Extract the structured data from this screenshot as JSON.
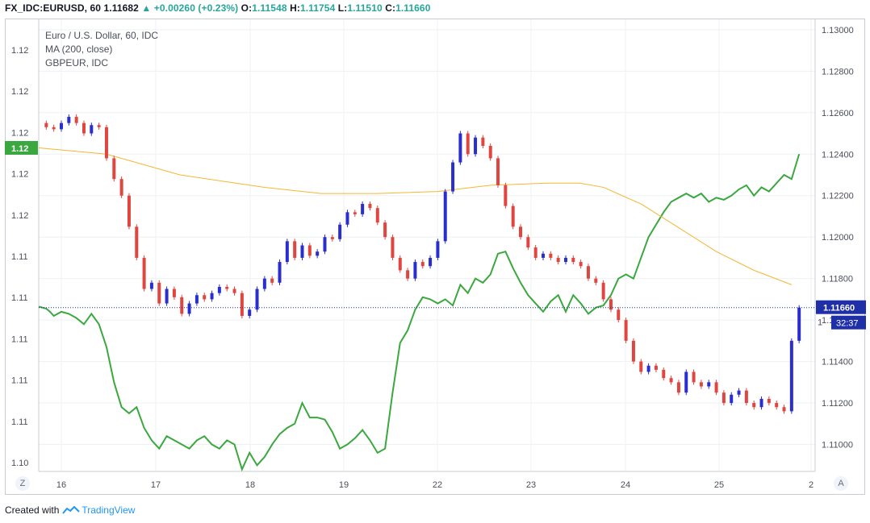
{
  "header": {
    "symbol": "FX_IDC:EURUSD, 60",
    "last": "1.11682",
    "change": "+0.00260 (+0.23%)",
    "open_label": "O:",
    "open": "1.11548",
    "high_label": "H:",
    "high": "1.11754",
    "low_label": "L:",
    "low": "1.11510",
    "close_label": "C:",
    "close": "1.11660"
  },
  "legend": {
    "line1": "Euro / U.S. Dollar, 60, IDC",
    "line2": "MA (200, close)",
    "line3": "GBPEUR, IDC"
  },
  "footer": {
    "created_with": "Created with",
    "brand": "TradingView"
  },
  "buttons": {
    "left": "Z",
    "right": "A"
  },
  "colors": {
    "up": "#2b2ecf",
    "down": "#e0453f",
    "ma": "#f5b731",
    "compare": "#3ba83f",
    "price_line": "#1e2fa8",
    "left_badge": "#3ba83f",
    "grid": "#eef0f3"
  },
  "chart_data": {
    "type": "line",
    "x_labels": [
      "16",
      "17",
      "18",
      "19",
      "22",
      "23",
      "24",
      "25",
      "2"
    ],
    "right_axis": {
      "ticks": [
        "1.13000",
        "1.12800",
        "1.12600",
        "1.12400",
        "1.12200",
        "1.12000",
        "1.11800",
        "1.11600",
        "1.11400",
        "1.11200",
        "1.11000"
      ],
      "ylim": [
        1.1087,
        1.1305
      ],
      "current_price_label": "1.11660",
      "countdown_label": "32:37",
      "partial_label": "1"
    },
    "left_axis": {
      "ticks": [
        "1.12",
        "1.12",
        "1.12",
        "1.12",
        "1.12",
        "1.11",
        "1.11",
        "1.11",
        "1.11",
        "1.11",
        "1.10"
      ],
      "current_label": "1.12"
    },
    "series": [
      {
        "name": "Euro / U.S. Dollar, 60, IDC",
        "kind": "candles",
        "points": [
          [
            0,
            1.1255
          ],
          [
            1.6,
            1.1253
          ],
          [
            3.2,
            1.1252
          ],
          [
            4.8,
            1.1255
          ],
          [
            6.4,
            1.1258
          ],
          [
            8,
            1.1255
          ],
          [
            9.6,
            1.125
          ],
          [
            11.2,
            1.1254
          ],
          [
            12.8,
            1.1253
          ],
          [
            14.4,
            1.1238
          ],
          [
            16,
            1.1228
          ],
          [
            17.6,
            1.122
          ],
          [
            19.2,
            1.1205
          ],
          [
            20.8,
            1.119
          ],
          [
            22.4,
            1.1175
          ],
          [
            24,
            1.1178
          ],
          [
            25.6,
            1.1168
          ],
          [
            27.2,
            1.1175
          ],
          [
            28.8,
            1.1171
          ],
          [
            30.4,
            1.1163
          ],
          [
            32,
            1.1168
          ],
          [
            33.6,
            1.1172
          ],
          [
            35.2,
            1.117
          ],
          [
            36.8,
            1.1173
          ],
          [
            38.4,
            1.1176
          ],
          [
            40,
            1.1175
          ],
          [
            41.6,
            1.1173
          ],
          [
            43.2,
            1.1162
          ],
          [
            44.8,
            1.1165
          ],
          [
            46.4,
            1.1175
          ],
          [
            48,
            1.118
          ],
          [
            49.6,
            1.1178
          ],
          [
            51.2,
            1.1188
          ],
          [
            52.8,
            1.1198
          ],
          [
            54.4,
            1.119
          ],
          [
            56,
            1.1196
          ],
          [
            57.6,
            1.1191
          ],
          [
            59.2,
            1.1193
          ],
          [
            60.8,
            1.12
          ],
          [
            62.4,
            1.1199
          ],
          [
            64,
            1.1206
          ],
          [
            65.6,
            1.1212
          ],
          [
            67.2,
            1.1211
          ],
          [
            68.8,
            1.1216
          ],
          [
            70.4,
            1.1214
          ],
          [
            72,
            1.1207
          ],
          [
            73.6,
            1.12
          ],
          [
            75.2,
            1.119
          ],
          [
            76.8,
            1.1184
          ],
          [
            78.4,
            1.118
          ],
          [
            80,
            1.1188
          ],
          [
            81.6,
            1.1186
          ],
          [
            83.2,
            1.119
          ],
          [
            84.8,
            1.1198
          ],
          [
            86.4,
            1.1222
          ],
          [
            88,
            1.1236
          ],
          [
            89.6,
            1.125
          ],
          [
            91.2,
            1.124
          ],
          [
            92.8,
            1.1248
          ],
          [
            94.4,
            1.1244
          ],
          [
            96,
            1.1238
          ],
          [
            97.6,
            1.1225
          ],
          [
            99.2,
            1.1215
          ],
          [
            100.8,
            1.1205
          ],
          [
            102.4,
            1.12
          ],
          [
            104,
            1.1195
          ],
          [
            105.6,
            1.119
          ],
          [
            107.2,
            1.1192
          ],
          [
            108.8,
            1.119
          ],
          [
            110.4,
            1.1188
          ],
          [
            112,
            1.119
          ],
          [
            113.6,
            1.1188
          ],
          [
            115.2,
            1.1186
          ],
          [
            116.8,
            1.118
          ],
          [
            118.4,
            1.1178
          ],
          [
            120,
            1.117
          ],
          [
            121.6,
            1.1165
          ],
          [
            123.2,
            1.116
          ],
          [
            124.8,
            1.115
          ],
          [
            126.4,
            1.114
          ],
          [
            128,
            1.1135
          ],
          [
            129.6,
            1.1138
          ],
          [
            131.2,
            1.1136
          ],
          [
            132.8,
            1.1132
          ],
          [
            134.4,
            1.113
          ],
          [
            136,
            1.1125
          ],
          [
            137.6,
            1.1135
          ],
          [
            139.2,
            1.113
          ],
          [
            140.8,
            1.1128
          ],
          [
            142.4,
            1.113
          ],
          [
            144,
            1.1125
          ],
          [
            145.6,
            1.112
          ],
          [
            147.2,
            1.1124
          ],
          [
            148.8,
            1.1126
          ],
          [
            150.4,
            1.112
          ],
          [
            152,
            1.1118
          ],
          [
            153.6,
            1.1122
          ],
          [
            155.2,
            1.112
          ],
          [
            156.8,
            1.1118
          ],
          [
            158.4,
            1.1116
          ],
          [
            160,
            1.115
          ],
          [
            161.6,
            1.1166
          ]
        ]
      },
      {
        "name": "MA (200, close)",
        "kind": "line",
        "points": [
          [
            0,
            1.1243
          ],
          [
            14.4,
            1.124
          ],
          [
            30,
            1.123
          ],
          [
            48,
            1.1224
          ],
          [
            60,
            1.1221
          ],
          [
            72,
            1.1221
          ],
          [
            84.8,
            1.1222
          ],
          [
            96,
            1.1225
          ],
          [
            108,
            1.1226
          ],
          [
            115,
            1.1226
          ],
          [
            120,
            1.1224
          ],
          [
            128,
            1.1216
          ],
          [
            135,
            1.1206
          ],
          [
            144,
            1.1193
          ],
          [
            152,
            1.1184
          ],
          [
            160,
            1.1177
          ]
        ]
      },
      {
        "name": "GBPEUR, IDC",
        "kind": "line",
        "points": [
          [
            0,
            1.11665
          ],
          [
            1.6,
            1.11655
          ],
          [
            2.4,
            1.1164
          ],
          [
            3.2,
            1.1162
          ],
          [
            4.8,
            1.1164
          ],
          [
            6.4,
            1.1163
          ],
          [
            8,
            1.1161
          ],
          [
            9.6,
            1.1158
          ],
          [
            11.2,
            1.1163
          ],
          [
            12.8,
            1.1158
          ],
          [
            14.4,
            1.1147
          ],
          [
            16,
            1.113
          ],
          [
            17.6,
            1.1118
          ],
          [
            19.2,
            1.1115
          ],
          [
            20.8,
            1.1118
          ],
          [
            22.4,
            1.1108
          ],
          [
            24,
            1.1102
          ],
          [
            25.6,
            1.1098
          ],
          [
            27.2,
            1.1104
          ],
          [
            28.8,
            1.1102
          ],
          [
            30.4,
            1.11
          ],
          [
            32,
            1.1098
          ],
          [
            33.6,
            1.1102
          ],
          [
            35.2,
            1.1104
          ],
          [
            36.8,
            1.11
          ],
          [
            38.4,
            1.1098
          ],
          [
            40,
            1.1102
          ],
          [
            41.6,
            1.11
          ],
          [
            43.2,
            1.1088
          ],
          [
            44.8,
            1.1096
          ],
          [
            46.4,
            1.109
          ],
          [
            48,
            1.1094
          ],
          [
            49.6,
            1.11
          ],
          [
            51.2,
            1.1105
          ],
          [
            52.8,
            1.1108
          ],
          [
            54.4,
            1.111
          ],
          [
            56,
            1.112
          ],
          [
            57.6,
            1.1113
          ],
          [
            59.2,
            1.1113
          ],
          [
            60.8,
            1.1112
          ],
          [
            62.4,
            1.1106
          ],
          [
            64,
            1.1098
          ],
          [
            65.6,
            1.11
          ],
          [
            67.2,
            1.1103
          ],
          [
            68.8,
            1.1107
          ],
          [
            70.4,
            1.1102
          ],
          [
            72,
            1.1096
          ],
          [
            73.6,
            1.1098
          ],
          [
            75.2,
            1.1125
          ],
          [
            76.8,
            1.1149
          ],
          [
            78.4,
            1.1155
          ],
          [
            80,
            1.1165
          ],
          [
            81.6,
            1.1171
          ],
          [
            83.2,
            1.117
          ],
          [
            84.8,
            1.1168
          ],
          [
            86.4,
            1.117
          ],
          [
            88,
            1.1167
          ],
          [
            89.6,
            1.1177
          ],
          [
            91.2,
            1.1173
          ],
          [
            92.8,
            1.118
          ],
          [
            94.4,
            1.1178
          ],
          [
            96,
            1.1182
          ],
          [
            97.6,
            1.1192
          ],
          [
            99.2,
            1.1193
          ],
          [
            100.8,
            1.1185
          ],
          [
            102.4,
            1.1178
          ],
          [
            104,
            1.1172
          ],
          [
            105.6,
            1.1168
          ],
          [
            107.2,
            1.1164
          ],
          [
            108.8,
            1.1169
          ],
          [
            110.4,
            1.1172
          ],
          [
            112,
            1.1164
          ],
          [
            113.6,
            1.1172
          ],
          [
            115.2,
            1.1168
          ],
          [
            116.8,
            1.1163
          ],
          [
            118.4,
            1.1166
          ],
          [
            120,
            1.1167
          ],
          [
            121.6,
            1.1172
          ],
          [
            123.2,
            1.118
          ],
          [
            124.8,
            1.1182
          ],
          [
            126.4,
            1.118
          ],
          [
            128,
            1.119
          ],
          [
            129.6,
            1.12
          ],
          [
            131.2,
            1.1206
          ],
          [
            132.8,
            1.1212
          ],
          [
            134.4,
            1.1217
          ],
          [
            136,
            1.1219
          ],
          [
            137.6,
            1.1221
          ],
          [
            139.2,
            1.1219
          ],
          [
            140.8,
            1.1221
          ],
          [
            142.4,
            1.1217
          ],
          [
            144,
            1.1219
          ],
          [
            145.6,
            1.1218
          ],
          [
            147.2,
            1.122
          ],
          [
            148.8,
            1.1223
          ],
          [
            150.4,
            1.1225
          ],
          [
            152,
            1.122
          ],
          [
            153.6,
            1.1224
          ],
          [
            155.2,
            1.1222
          ],
          [
            156.8,
            1.1226
          ],
          [
            158.4,
            1.123
          ],
          [
            160,
            1.1228
          ],
          [
            161.6,
            1.124
          ]
        ]
      }
    ],
    "grid": true,
    "legend_position": "top-left"
  }
}
